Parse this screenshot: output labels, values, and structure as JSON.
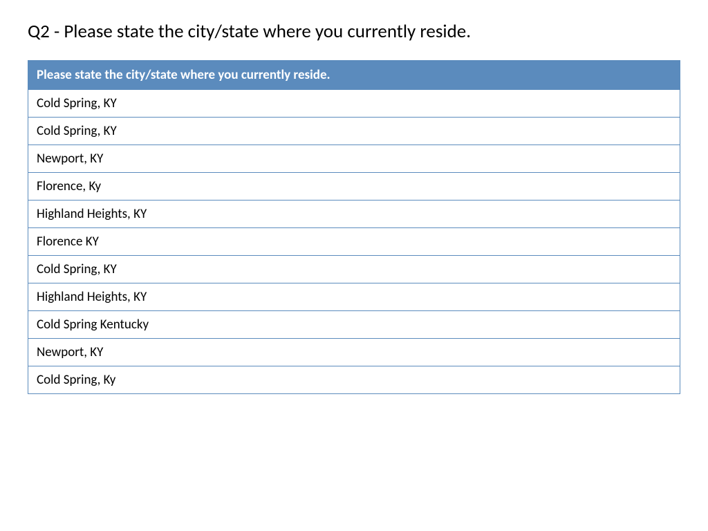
{
  "title": "Q2 - Please state the city/state where you currently reside.",
  "table": {
    "type": "table",
    "header": "Please state the city/state where you currently reside.",
    "header_bg_color": "#5b8bbd",
    "header_text_color": "#ffffff",
    "border_color": "#5b8bbd",
    "cell_bg_color": "#ffffff",
    "cell_text_color": "#000000",
    "font_size_header": 19,
    "font_size_cell": 19,
    "rows": [
      "Cold Spring, KY",
      "Cold Spring, KY",
      "Newport, KY",
      "Florence, Ky",
      "Highland Heights, KY",
      "Florence KY",
      "Cold Spring, KY",
      "Highland Heights, KY",
      "Cold Spring Kentucky",
      "Newport, KY",
      "Cold Spring, Ky"
    ]
  }
}
